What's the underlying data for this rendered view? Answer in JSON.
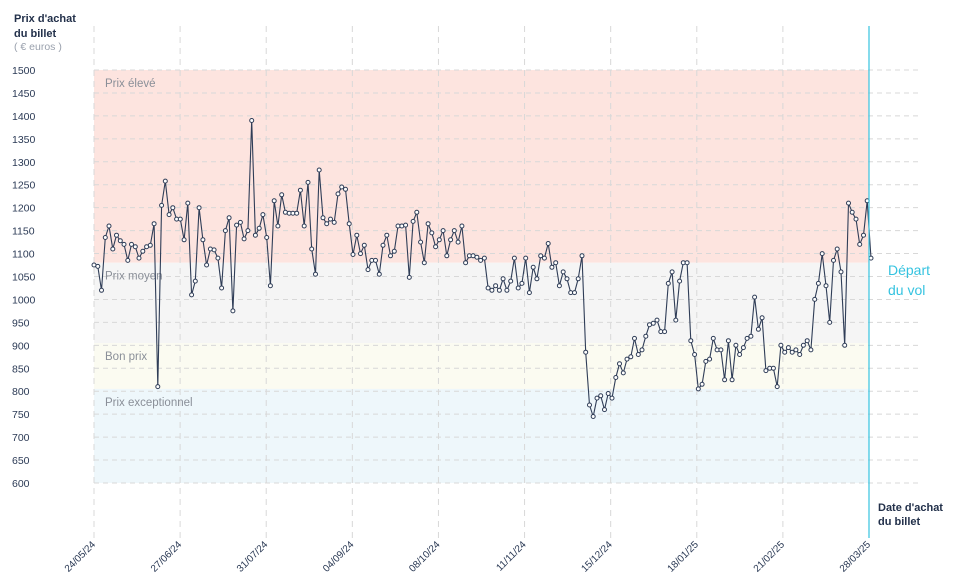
{
  "chart_data": {
    "type": "line",
    "y_axis_title": [
      "Prix d'achat",
      "du billet"
    ],
    "y_axis_unit": "( € euros )",
    "x_axis_title": [
      "Date d'achat",
      "du billet"
    ],
    "departure_label": [
      "Départ",
      "du vol"
    ],
    "ylim": [
      600,
      1500
    ],
    "y_ticks": [
      1500,
      1450,
      1400,
      1350,
      1300,
      1250,
      1200,
      1150,
      1100,
      1050,
      1000,
      950,
      900,
      850,
      800,
      750,
      700,
      650,
      600
    ],
    "x_ticks": [
      "24/05/24",
      "27/06/24",
      "31/07/24",
      "04/09/24",
      "08/10/24",
      "11/11/24",
      "15/12/24",
      "18/01/25",
      "21/02/25",
      "28/03/25"
    ],
    "grid": true,
    "bands": [
      {
        "label": "Prix élevé",
        "from": 1080,
        "to": 1500,
        "color": "#fde4df"
      },
      {
        "label": "Prix moyen",
        "from": 905,
        "to": 1080,
        "color": "#f5f5f5"
      },
      {
        "label": "Bon prix",
        "from": 805,
        "to": 905,
        "color": "#fbfbf1"
      },
      {
        "label": "Prix exceptionnel",
        "from": 600,
        "to": 805,
        "color": "#eef7fb"
      }
    ],
    "colors": {
      "line": "#2f3d57",
      "departure_line": "#35c3e0",
      "grid": "#d8d8d8"
    },
    "series": [
      {
        "day_offsets": [
          0,
          2,
          4,
          6,
          8,
          10,
          12,
          14,
          16,
          18,
          20,
          22,
          24,
          26,
          28,
          30,
          32,
          34,
          36,
          38,
          40,
          42,
          44,
          46,
          48,
          50,
          52,
          54,
          56,
          58,
          60,
          62,
          64,
          66,
          68,
          70,
          72,
          74,
          76,
          78,
          80,
          82,
          84,
          86,
          88,
          90,
          92,
          94,
          96,
          98,
          100,
          102,
          104,
          106,
          108,
          110,
          112,
          114,
          116,
          118,
          120,
          122,
          124,
          126,
          128,
          130,
          132,
          134,
          136,
          138,
          140,
          142,
          144,
          146,
          148,
          150,
          152,
          154,
          156,
          158,
          160,
          162,
          164,
          166,
          168,
          170,
          172,
          174,
          176,
          178,
          180,
          182,
          184,
          186,
          188,
          190,
          192,
          194,
          196,
          198,
          200,
          202,
          204,
          206,
          208,
          210,
          212,
          214,
          216,
          218,
          220,
          222,
          224,
          226,
          228,
          230,
          232,
          234,
          236,
          238,
          240,
          242,
          244,
          246,
          248,
          250,
          252,
          254,
          256,
          258,
          260,
          262,
          264,
          266,
          268,
          270,
          272,
          274,
          276,
          278,
          280,
          282,
          284,
          286,
          288,
          290,
          292,
          294,
          296,
          298,
          300,
          302,
          304,
          306,
          308,
          310
        ],
        "values": [
          1075,
          1072,
          1020,
          1135,
          1160,
          1110,
          1140,
          1128,
          1120,
          1085,
          1120,
          1115,
          1090,
          1105,
          1115,
          1118,
          1165,
          810,
          1205,
          1258,
          1185,
          1200,
          1175,
          1175,
          1130,
          1210,
          1010,
          1040,
          1200,
          1130,
          1075,
          1110,
          1108,
          1090,
          1025,
          1150,
          1178,
          975,
          1162,
          1168,
          1132,
          1150,
          1390,
          1140,
          1155,
          1185,
          1135,
          1030,
          1215,
          1160,
          1228,
          1190,
          1188,
          1188,
          1188,
          1238,
          1160,
          1255,
          1110,
          1055,
          1282,
          1178,
          1165,
          1175,
          1168,
          1230,
          1245,
          1240,
          1165,
          1098,
          1140,
          1100,
          1118,
          1065,
          1085,
          1085,
          1055,
          1118,
          1140,
          1095,
          1105,
          1160,
          1160,
          1162,
          1048,
          1170,
          1190,
          1125,
          1080,
          1165,
          1145,
          1115,
          1130,
          1150,
          1095,
          1130,
          1150,
          1125,
          1160,
          1080,
          1095,
          1095,
          1092,
          1085,
          1090,
          1025,
          1020,
          1030,
          1020,
          1045,
          1020,
          1040,
          1090,
          1025,
          1035,
          1090,
          1015,
          1070,
          1045,
          1095,
          1090,
          1122,
          1070,
          1080,
          1030,
          1060,
          1045,
          1015,
          1015,
          1045,
          1095,
          885,
          770,
          745,
          785,
          790,
          760,
          795,
          785,
          830,
          860,
          840,
          870,
          875,
          915,
          880,
          890,
          920,
          945,
          948,
          955,
          930,
          930
        ],
        "segment": "2024-05-24 to 2025-01-24"
      }
    ],
    "series_tail": {
      "values": [
        1035,
        1060,
        955,
        1040,
        1080,
        1080,
        910,
        880,
        805,
        815,
        865,
        870,
        915,
        890,
        890,
        825,
        910,
        825,
        900,
        880,
        895,
        915,
        920,
        1005,
        935,
        960,
        845,
        850,
        850,
        810,
        900,
        885,
        895,
        885,
        890,
        880,
        900,
        910,
        890,
        1000,
        1035,
        1100,
        1030,
        950,
        1085,
        1110,
        1060,
        900,
        1210,
        1190,
        1175,
        1120,
        1140,
        1215,
        1090
      ]
    }
  }
}
